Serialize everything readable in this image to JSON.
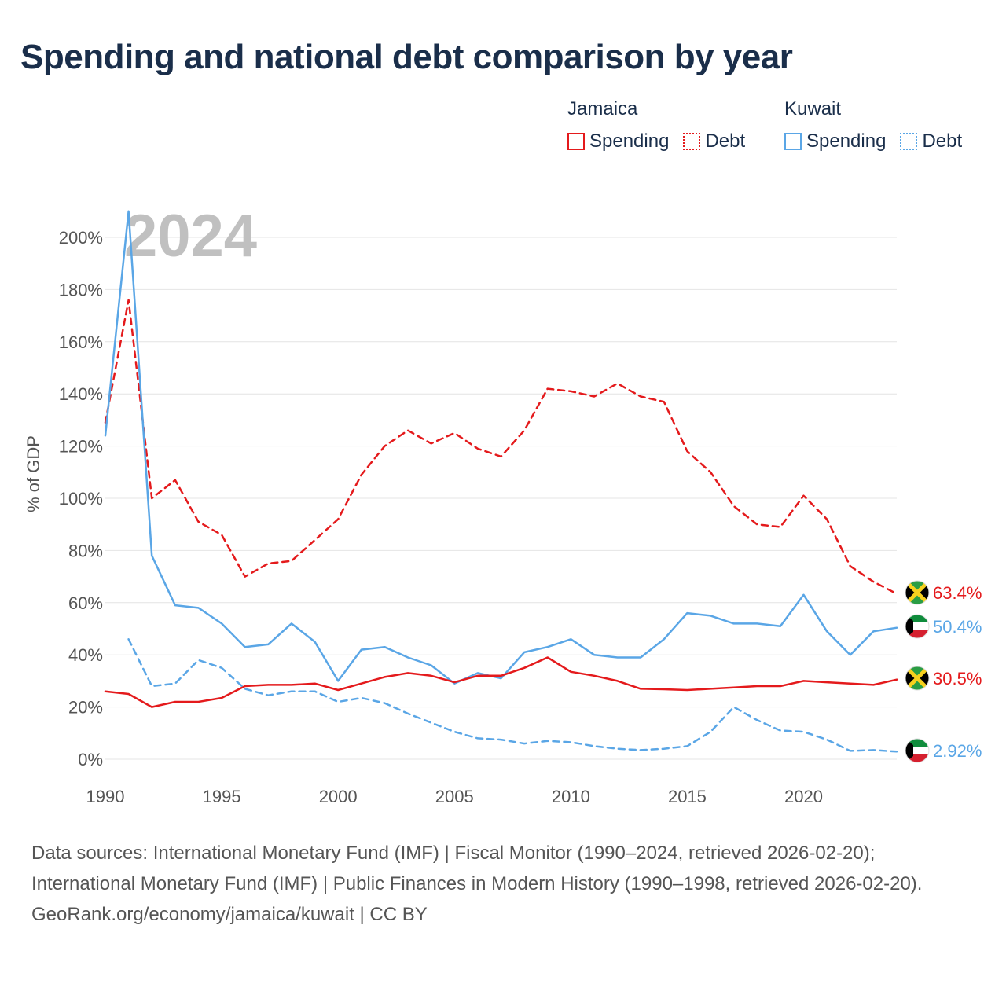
{
  "title": "Spending and national debt comparison by year",
  "legend": {
    "groups": [
      {
        "name": "Jamaica",
        "items": [
          {
            "label": "Spending",
            "style": "solid",
            "color": "#e41a1c"
          },
          {
            "label": "Debt",
            "style": "dotted",
            "color": "#e41a1c"
          }
        ]
      },
      {
        "name": "Kuwait",
        "items": [
          {
            "label": "Spending",
            "style": "solid",
            "color": "#5aa6e6"
          },
          {
            "label": "Debt",
            "style": "dotted",
            "color": "#5aa6e6"
          }
        ]
      }
    ]
  },
  "colors": {
    "jamaica": "#e41a1c",
    "kuwait": "#5aa6e6",
    "grid": "#e4e4e4",
    "axis_text": "#555555",
    "year_watermark": "#c0c0c0"
  },
  "footer": {
    "sources": "Data sources: International Monetary Fund (IMF) | Fiscal Monitor (1990–2024, retrieved 2026-02-20); International Monetary Fund (IMF) | Public Finances in Modern History (1990–1998, retrieved 2026-02-20).",
    "credit": "GeoRank.org/economy/jamaica/kuwait | CC BY"
  },
  "chart_data": {
    "type": "line",
    "year_label": "2024",
    "ylabel": "% of GDP",
    "xlabel": "",
    "xlim": [
      1990,
      2024
    ],
    "ylim": [
      0,
      200
    ],
    "grid": true,
    "x_ticks": [
      1990,
      1995,
      2000,
      2005,
      2010,
      2015,
      2020
    ],
    "y_ticks": [
      0,
      20,
      40,
      60,
      80,
      100,
      120,
      140,
      160,
      180,
      200
    ],
    "y_tick_labels": [
      "0%",
      "20%",
      "40%",
      "60%",
      "80%",
      "100%",
      "120%",
      "140%",
      "160%",
      "180%",
      "200%"
    ],
    "series": [
      {
        "name": "Jamaica Debt",
        "country": "Jamaica",
        "metric": "Debt",
        "dash": true,
        "color": "#e41a1c",
        "x": [
          1990,
          1991,
          1992,
          1993,
          1994,
          1995,
          1996,
          1997,
          1998,
          1999,
          2000,
          2001,
          2002,
          2003,
          2004,
          2005,
          2006,
          2007,
          2008,
          2009,
          2010,
          2011,
          2012,
          2013,
          2014,
          2015,
          2016,
          2017,
          2018,
          2019,
          2020,
          2021,
          2022,
          2023,
          2024
        ],
        "values": [
          129,
          176,
          100,
          107,
          91,
          86,
          70,
          75,
          76,
          84,
          92,
          109,
          120,
          126,
          121,
          125,
          119,
          116,
          126,
          142,
          141,
          139,
          144,
          139,
          137,
          118,
          110,
          97,
          90,
          89,
          101,
          92,
          74,
          68,
          63.4
        ],
        "end_label": "63.4%"
      },
      {
        "name": "Kuwait Spending",
        "country": "Kuwait",
        "metric": "Spending",
        "dash": false,
        "color": "#5aa6e6",
        "x": [
          1990,
          1991,
          1992,
          1993,
          1994,
          1995,
          1996,
          1997,
          1998,
          1999,
          2000,
          2001,
          2002,
          2003,
          2004,
          2005,
          2006,
          2007,
          2008,
          2009,
          2010,
          2011,
          2012,
          2013,
          2014,
          2015,
          2016,
          2017,
          2018,
          2019,
          2020,
          2021,
          2022,
          2023,
          2024
        ],
        "values": [
          124,
          210,
          78,
          59,
          58,
          52,
          43,
          44,
          52,
          45,
          30,
          42,
          43,
          39,
          36,
          29,
          33,
          31,
          41,
          43,
          46,
          40,
          39,
          39,
          46,
          56,
          55,
          52,
          52,
          51,
          63,
          49,
          40,
          49,
          50.4
        ],
        "end_label": "50.4%"
      },
      {
        "name": "Jamaica Spending",
        "country": "Jamaica",
        "metric": "Spending",
        "dash": false,
        "color": "#e41a1c",
        "x": [
          1990,
          1991,
          1992,
          1993,
          1994,
          1995,
          1996,
          1997,
          1998,
          1999,
          2000,
          2001,
          2002,
          2003,
          2004,
          2005,
          2006,
          2007,
          2008,
          2009,
          2010,
          2011,
          2012,
          2013,
          2014,
          2015,
          2016,
          2017,
          2018,
          2019,
          2020,
          2021,
          2022,
          2023,
          2024
        ],
        "values": [
          26,
          25,
          20,
          22,
          22,
          23.5,
          28,
          28.5,
          28.5,
          29,
          26.5,
          29,
          31.5,
          33,
          32,
          29.5,
          32,
          32,
          35,
          39,
          33.5,
          32,
          30,
          27,
          26.8,
          26.5,
          27,
          27.5,
          28,
          28,
          30,
          29.5,
          29,
          28.5,
          30.5
        ],
        "end_label": "30.5%"
      },
      {
        "name": "Kuwait Debt",
        "country": "Kuwait",
        "metric": "Debt",
        "dash": true,
        "color": "#5aa6e6",
        "x": [
          1991,
          1992,
          1993,
          1994,
          1995,
          1996,
          1997,
          1998,
          1999,
          2000,
          2001,
          2002,
          2003,
          2004,
          2005,
          2006,
          2007,
          2008,
          2009,
          2010,
          2011,
          2012,
          2013,
          2014,
          2015,
          2016,
          2017,
          2018,
          2019,
          2020,
          2021,
          2022,
          2023,
          2024
        ],
        "values": [
          46,
          28,
          29,
          38,
          35,
          27,
          24.5,
          26,
          26,
          22,
          23.5,
          21.5,
          17.5,
          14,
          10.5,
          8,
          7.5,
          6,
          7,
          6.5,
          5,
          4,
          3.5,
          4,
          5,
          10.5,
          20,
          15,
          11,
          10.5,
          7.5,
          3.2,
          3.5,
          2.92
        ],
        "end_label": "2.92%"
      }
    ]
  }
}
